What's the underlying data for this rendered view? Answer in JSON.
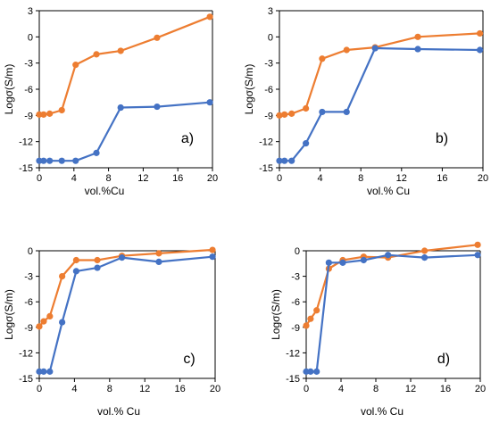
{
  "colors": {
    "orange": "#ED7D31",
    "blue": "#4472C4",
    "axis": "#000000"
  },
  "chart_data": [
    {
      "type": "line",
      "panel_label": "a)",
      "xlabel": "vol.%Cu",
      "ylabel": "Logσ(S/m)",
      "xlim": [
        0,
        20
      ],
      "ylim": [
        -15,
        3
      ],
      "xticks": [
        0,
        4,
        8,
        12,
        16,
        20
      ],
      "yticks": [
        3,
        0,
        -3,
        -6,
        -9,
        -12,
        -15
      ],
      "grid": false,
      "series": [
        {
          "color": "orange",
          "x": [
            0,
            0.5,
            1.2,
            2.6,
            4.2,
            6.6,
            9.4,
            13.6,
            19.7
          ],
          "y": [
            -8.9,
            -8.9,
            -8.8,
            -8.4,
            -3.2,
            -2.0,
            -1.6,
            -0.1,
            2.3
          ]
        },
        {
          "color": "blue",
          "x": [
            0,
            0.5,
            1.2,
            2.6,
            4.2,
            6.6,
            9.4,
            13.6,
            19.7
          ],
          "y": [
            -14.2,
            -14.2,
            -14.2,
            -14.2,
            -14.2,
            -13.3,
            -8.1,
            -8.0,
            -7.5
          ]
        }
      ]
    },
    {
      "type": "line",
      "panel_label": "b)",
      "xlabel": "vol.% Cu",
      "ylabel": "Logσ(S/m)",
      "xlim": [
        0,
        20
      ],
      "ylim": [
        -15,
        3
      ],
      "xticks": [
        0,
        4,
        8,
        12,
        16,
        20
      ],
      "yticks": [
        3,
        0,
        -3,
        -6,
        -9,
        -12,
        -15
      ],
      "grid": false,
      "series": [
        {
          "color": "orange",
          "x": [
            0,
            0.5,
            1.2,
            2.6,
            4.2,
            6.6,
            9.4,
            13.6,
            19.7
          ],
          "y": [
            -9.0,
            -8.9,
            -8.8,
            -8.2,
            -2.5,
            -1.5,
            -1.2,
            0.0,
            0.4
          ]
        },
        {
          "color": "blue",
          "x": [
            0,
            0.5,
            1.2,
            2.6,
            4.2,
            6.6,
            9.4,
            13.6,
            19.7
          ],
          "y": [
            -14.2,
            -14.2,
            -14.2,
            -12.2,
            -8.6,
            -8.6,
            -1.3,
            -1.4,
            -1.5
          ]
        }
      ]
    },
    {
      "type": "line",
      "panel_label": "c)",
      "xlabel": "vol.% Cu",
      "ylabel": "Logσ(S/m)",
      "xlim": [
        0,
        20
      ],
      "ylim": [
        -15,
        0
      ],
      "xticks": [
        0,
        4,
        8,
        12,
        16,
        20
      ],
      "yticks": [
        0,
        -3,
        -6,
        -9,
        -12,
        -15
      ],
      "grid": false,
      "series": [
        {
          "color": "orange",
          "x": [
            0,
            0.5,
            1.2,
            2.6,
            4.2,
            6.6,
            9.4,
            13.6,
            19.7
          ],
          "y": [
            -8.9,
            -8.3,
            -7.7,
            -3.0,
            -1.1,
            -1.1,
            -0.6,
            -0.3,
            0.1
          ]
        },
        {
          "color": "blue",
          "x": [
            0,
            0.5,
            1.2,
            2.6,
            4.2,
            6.6,
            9.4,
            13.6,
            19.7
          ],
          "y": [
            -14.2,
            -14.2,
            -14.2,
            -8.4,
            -2.4,
            -2.0,
            -0.8,
            -1.3,
            -0.7
          ]
        }
      ]
    },
    {
      "type": "line",
      "panel_label": "d)",
      "xlabel": "vol.% Cu",
      "ylabel": "Logσ(S/m)",
      "xlim": [
        0,
        20
      ],
      "ylim": [
        -15,
        0
      ],
      "xticks": [
        0,
        4,
        8,
        12,
        16,
        20
      ],
      "yticks": [
        0,
        -3,
        -6,
        -9,
        -12,
        -15
      ],
      "grid": false,
      "series": [
        {
          "color": "orange",
          "x": [
            0,
            0.5,
            1.2,
            2.6,
            4.2,
            6.6,
            9.4,
            13.6,
            19.7
          ],
          "y": [
            -8.8,
            -8.0,
            -7.0,
            -2.1,
            -1.1,
            -0.7,
            -0.8,
            0.0,
            0.7
          ]
        },
        {
          "color": "blue",
          "x": [
            0,
            0.5,
            1.2,
            2.6,
            4.2,
            6.6,
            9.4,
            13.6,
            19.7
          ],
          "y": [
            -14.2,
            -14.2,
            -14.2,
            -1.4,
            -1.4,
            -1.1,
            -0.5,
            -0.8,
            -0.5
          ]
        }
      ]
    }
  ]
}
